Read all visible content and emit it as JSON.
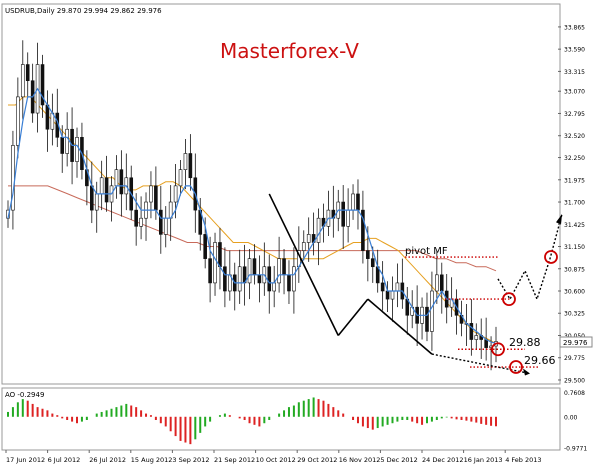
{
  "chart_data": {
    "type": "candlestick",
    "symbol_header": "USDRUB,Daily  29.870 29.994 29.862 29.976",
    "watermark": "Masterforex-V",
    "price_axis": {
      "ylim": [
        29.475,
        34.0
      ],
      "ticks": [
        "33.865",
        "33.590",
        "33.315",
        "33.070",
        "32.795",
        "32.520",
        "32.250",
        "31.975",
        "31.700",
        "31.425",
        "31.150",
        "30.875",
        "30.600",
        "30.325",
        "30.050",
        "29.775",
        "29.500"
      ],
      "ticks_positions": [
        33.865,
        33.59,
        33.315,
        33.07,
        32.795,
        32.52,
        32.25,
        31.975,
        31.7,
        31.425,
        31.15,
        30.875,
        30.6,
        30.325,
        30.05,
        29.775,
        29.5
      ]
    },
    "date_axis": {
      "labels": [
        "17 Jun 2012",
        "6 Jul 2012",
        "26 Jul 2012",
        "15 Aug 2012",
        "3 Sep 2012",
        "21 Sep 2012",
        "10 Oct 2012",
        "29 Oct 2012",
        "16 Nov 2012",
        "5 Dec 2012",
        "24 Dec 2012",
        "16 Jan 2013",
        "4 Feb 2013"
      ]
    },
    "current_price": "29.976",
    "levels": [
      {
        "name": "pivot MF",
        "value": 31.02
      },
      {
        "name": "",
        "value": 30.5
      },
      {
        "name": "29.88",
        "value": 29.88
      },
      {
        "name": "29.66",
        "value": 29.66
      }
    ],
    "close_series": [
      31.6,
      32.4,
      33.0,
      33.4,
      33.2,
      32.8,
      33.4,
      32.9,
      32.6,
      32.8,
      32.5,
      32.3,
      32.6,
      32.2,
      32.5,
      32.1,
      31.9,
      31.6,
      31.8,
      32.0,
      31.7,
      31.9,
      32.1,
      31.8,
      32.0,
      31.6,
      31.4,
      31.5,
      31.7,
      31.9,
      31.6,
      31.3,
      31.5,
      31.7,
      31.9,
      32.1,
      32.3,
      32.0,
      31.6,
      31.3,
      31.0,
      30.7,
      31.2,
      30.9,
      30.6,
      30.8,
      30.6,
      30.9,
      30.7,
      31.0,
      30.8,
      30.7,
      30.9,
      30.6,
      30.7,
      31.0,
      30.8,
      30.6,
      30.9,
      31.1,
      31.2,
      31.3,
      31.2,
      31.5,
      31.4,
      31.6,
      31.5,
      31.7,
      31.4,
      31.6,
      31.8,
      31.6,
      31.1,
      31.0,
      30.9,
      30.7,
      30.6,
      30.5,
      30.6,
      30.7,
      30.5,
      30.3,
      30.4,
      30.2,
      30.4,
      30.1,
      30.6,
      30.8,
      30.6,
      30.4,
      30.5,
      30.3,
      30.2,
      30.2,
      30.0,
      30.05,
      30.0,
      29.9,
      29.92,
      29.976
    ],
    "ma_fast": [
      31.5,
      31.8,
      32.3,
      32.7,
      33.0,
      33.0,
      33.1,
      33.0,
      32.9,
      32.8,
      32.7,
      32.5,
      32.5,
      32.4,
      32.4,
      32.3,
      32.1,
      31.9,
      31.8,
      31.8,
      31.8,
      31.8,
      31.9,
      31.9,
      31.9,
      31.8,
      31.7,
      31.6,
      31.6,
      31.6,
      31.6,
      31.5,
      31.5,
      31.5,
      31.6,
      31.8,
      31.9,
      31.9,
      31.8,
      31.6,
      31.4,
      31.1,
      31.0,
      30.9,
      30.8,
      30.8,
      30.7,
      30.7,
      30.7,
      30.8,
      30.8,
      30.8,
      30.8,
      30.7,
      30.7,
      30.8,
      30.8,
      30.8,
      30.8,
      30.9,
      31.0,
      31.1,
      31.2,
      31.3,
      31.4,
      31.5,
      31.5,
      31.6,
      31.6,
      31.6,
      31.6,
      31.6,
      31.5,
      31.3,
      31.1,
      30.9,
      30.8,
      30.6,
      30.6,
      30.6,
      30.6,
      30.5,
      30.4,
      30.3,
      30.3,
      30.3,
      30.4,
      30.5,
      30.6,
      30.5,
      30.5,
      30.4,
      30.3,
      30.2,
      30.15,
      30.1,
      30.05,
      30.0,
      29.97,
      29.95
    ],
    "ma_mid": [
      32.9,
      32.9,
      33.0,
      33.0,
      32.9,
      32.8,
      32.7,
      32.6,
      32.5,
      32.4,
      32.3,
      32.2,
      32.1,
      32.0,
      32.0,
      31.9,
      31.85,
      31.85,
      31.9,
      31.9,
      31.9,
      31.95,
      31.95,
      31.9,
      31.8,
      31.7,
      31.6,
      31.5,
      31.4,
      31.3,
      31.2,
      31.2,
      31.2,
      31.15,
      31.1,
      31.05,
      31.0,
      31.0,
      31.0,
      31.0,
      31.0,
      31.0,
      31.0,
      31.05,
      31.1,
      31.15,
      31.2,
      31.2,
      31.25,
      31.25,
      31.2,
      31.15,
      31.1,
      31.0,
      30.9,
      30.8,
      30.7,
      30.6,
      30.5,
      30.4,
      30.3,
      30.2,
      30.1,
      30.05,
      30.0,
      29.95
    ],
    "ma_slow": [
      31.9,
      31.9,
      31.9,
      31.9,
      31.9,
      31.85,
      31.8,
      31.75,
      31.7,
      31.65,
      31.6,
      31.55,
      31.5,
      31.45,
      31.4,
      31.35,
      31.3,
      31.25,
      31.2,
      31.2,
      31.15,
      31.15,
      31.1,
      31.1,
      31.1,
      31.1,
      31.1,
      31.1,
      31.1,
      31.1,
      31.1,
      31.1,
      31.1,
      31.1,
      31.1,
      31.1,
      31.1,
      31.1,
      31.1,
      31.1,
      31.1,
      31.1,
      31.05,
      31.0,
      31.0,
      30.95,
      30.95,
      30.9,
      30.9,
      30.85
    ],
    "trend_lines": [
      {
        "from": [
          53,
          31.8
        ],
        "to": [
          67,
          30.05
        ]
      },
      {
        "from": [
          67,
          30.05
        ],
        "to": [
          73,
          30.5
        ]
      },
      {
        "from": [
          73,
          30.5
        ],
        "to": [
          86,
          29.82
        ]
      }
    ],
    "oscillator": {
      "label": "AO -0.2949",
      "ylim": [
        -0.97,
        0.77
      ],
      "ticks": [
        "0.7608",
        "0.00",
        "-0.9771"
      ],
      "ticks_positions": [
        0.7608,
        0.0,
        -0.9771
      ],
      "values": [
        0.15,
        0.3,
        0.45,
        0.55,
        0.5,
        0.4,
        0.3,
        0.25,
        0.2,
        0.1,
        0.05,
        -0.05,
        -0.1,
        -0.15,
        -0.2,
        -0.15,
        -0.1,
        0.0,
        0.1,
        0.15,
        0.2,
        0.25,
        0.3,
        0.35,
        0.4,
        0.35,
        0.3,
        0.2,
        0.1,
        0.05,
        -0.1,
        -0.2,
        -0.3,
        -0.45,
        -0.6,
        -0.75,
        -0.8,
        -0.85,
        -0.7,
        -0.5,
        -0.3,
        -0.15,
        0.0,
        0.05,
        0.1,
        0.05,
        0.0,
        -0.05,
        -0.1,
        -0.2,
        -0.25,
        -0.3,
        -0.2,
        -0.1,
        0.0,
        0.1,
        0.2,
        0.3,
        0.35,
        0.45,
        0.5,
        0.55,
        0.6,
        0.55,
        0.5,
        0.4,
        0.3,
        0.2,
        0.1,
        0.0,
        -0.1,
        -0.2,
        -0.3,
        -0.35,
        -0.4,
        -0.35,
        -0.3,
        -0.25,
        -0.2,
        -0.15,
        -0.1,
        -0.1,
        -0.15,
        -0.2,
        -0.25,
        -0.2,
        -0.15,
        -0.1,
        -0.05,
        -0.02,
        -0.05,
        -0.08,
        -0.1,
        -0.12,
        -0.15,
        -0.18,
        -0.22,
        -0.25,
        -0.28,
        -0.2949
      ]
    }
  },
  "colors": {
    "up": "#3a3a3a",
    "down": "#111111",
    "ma_fast": "#3a7fd5",
    "ma_mid": "#e6a020",
    "ma_slow": "#c86a5a",
    "ma_green": "#4aa84a",
    "level": "#cc0000",
    "ao_up": "#22aa22",
    "ao_down": "#dd2222",
    "watermark": "#cc1111"
  }
}
